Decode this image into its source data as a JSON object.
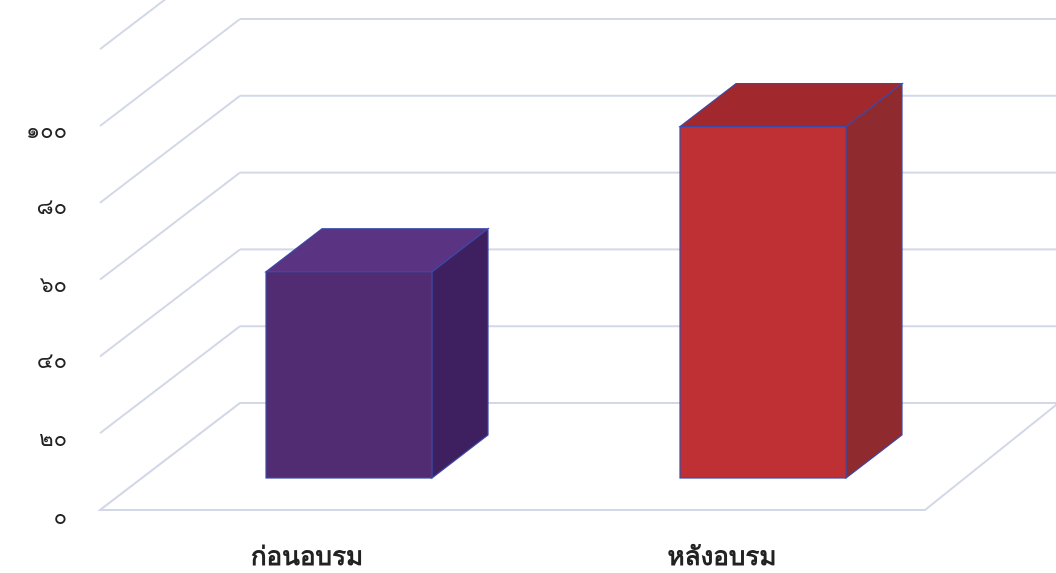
{
  "chart_data": {
    "type": "bar",
    "categories": [
      "ก่อนอบรม",
      "หลังอบรม"
    ],
    "values": [
      54,
      92
    ],
    "ylim": [
      0,
      120
    ],
    "y_ticks": [
      {
        "value": 0,
        "label": "๐"
      },
      {
        "value": 20,
        "label": "๒๐"
      },
      {
        "value": 40,
        "label": "๔๐"
      },
      {
        "value": 60,
        "label": "๖๐"
      },
      {
        "value": 80,
        "label": "๘๐"
      },
      {
        "value": 100,
        "label": "๑๐๐"
      }
    ],
    "grid": true,
    "legend": "none",
    "style": "3d",
    "colors": {
      "bar_front": [
        "#522c73",
        "#bf3035"
      ],
      "bar_side": [
        "#3e2060",
        "#8f2a2e"
      ],
      "bar_top": [
        "#5a3382",
        "#a1282d"
      ],
      "grid": "#d3d8e8",
      "axis_text": "#222222"
    }
  }
}
